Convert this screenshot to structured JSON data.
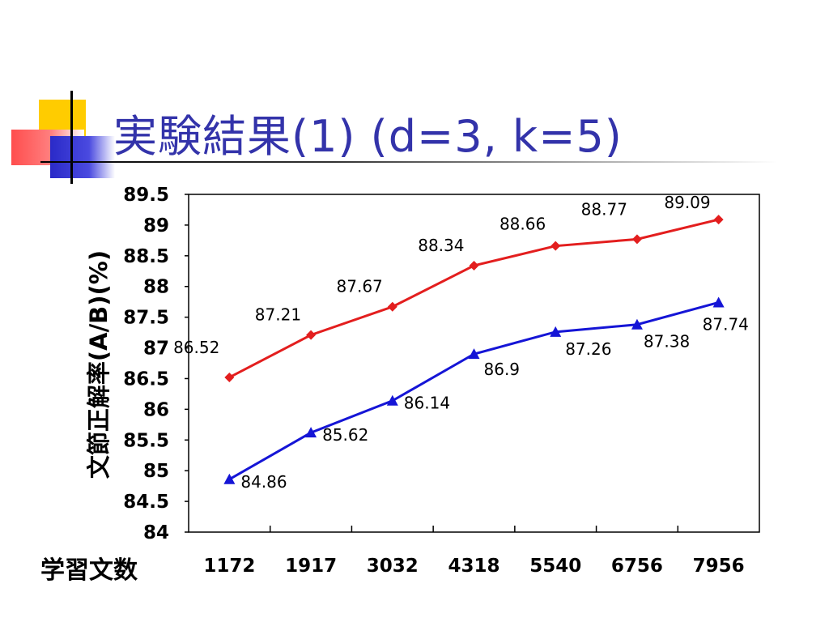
{
  "slide": {
    "title": "実験結果(1) (d=3, k=5)"
  },
  "colors": {
    "title": "#3333aa",
    "series_red": "#e31e1e",
    "series_blue": "#1515d6",
    "deco_yellow": "#ffcc00",
    "deco_red": "#ff5050",
    "deco_blue": "#3a3ad0"
  },
  "chart_data": {
    "type": "line",
    "categories": [
      "1172",
      "1917",
      "3032",
      "4318",
      "5540",
      "6756",
      "7956"
    ],
    "xlabel": "学習文数",
    "ylabel": "文節正解率(A/B)(%)",
    "ylim": [
      84,
      89.5
    ],
    "yticks": [
      "89.5",
      "89",
      "88.5",
      "88",
      "87.5",
      "87",
      "86.5",
      "86",
      "85.5",
      "85",
      "84.5",
      "84"
    ],
    "grid": false,
    "series": [
      {
        "marker": "diamond",
        "color": "#e31e1e",
        "values": [
          86.52,
          87.21,
          87.67,
          88.34,
          88.66,
          88.77,
          89.09
        ],
        "labels": [
          "86.52",
          "87.21",
          "87.67",
          "88.34",
          "88.66",
          "88.77",
          "89.09"
        ]
      },
      {
        "marker": "triangle",
        "color": "#1515d6",
        "values": [
          84.86,
          85.62,
          86.14,
          86.9,
          87.26,
          87.38,
          87.74
        ],
        "labels": [
          "84.86",
          "85.62",
          "86.14",
          "86.9",
          "87.26",
          "87.38",
          "87.74"
        ]
      }
    ]
  }
}
